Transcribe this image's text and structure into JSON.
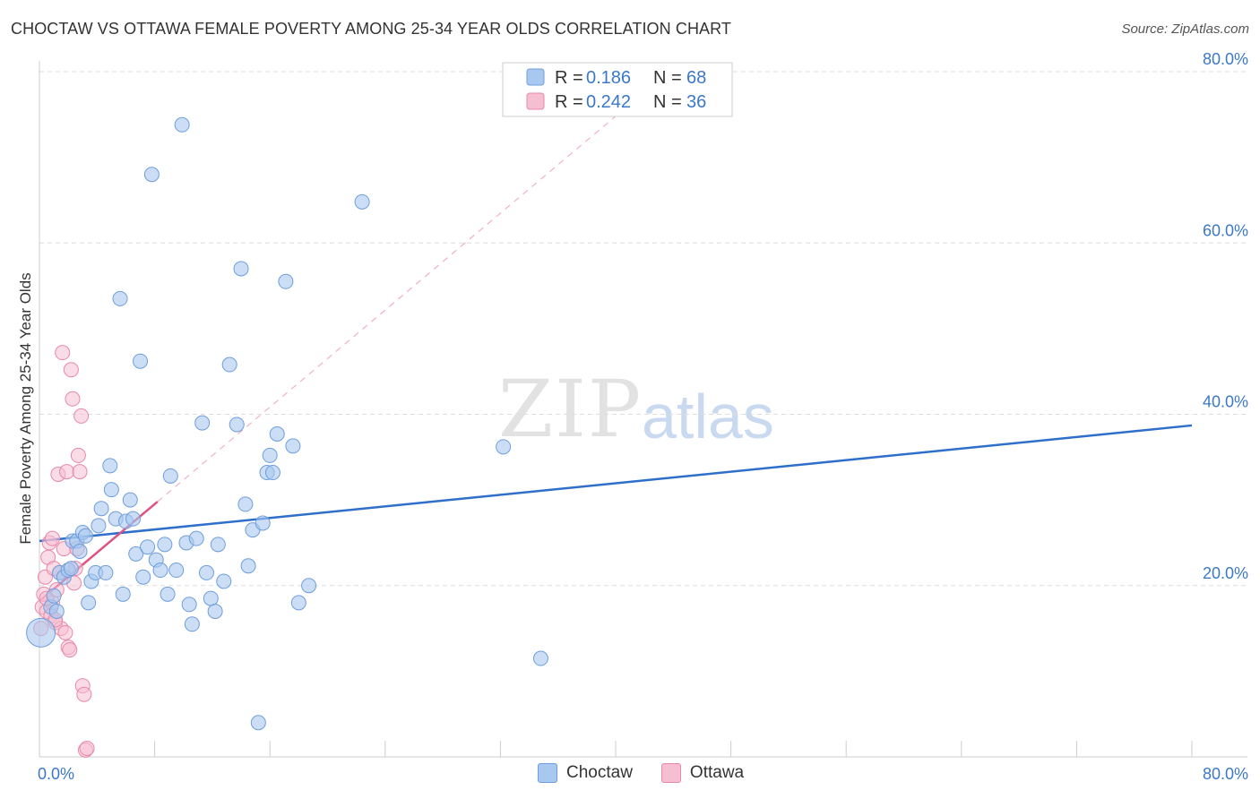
{
  "title": "CHOCTAW VS OTTAWA FEMALE POVERTY AMONG 25-34 YEAR OLDS CORRELATION CHART",
  "source": "Source: ZipAtlas.com",
  "watermark": {
    "zip": "ZIP",
    "atlas": "atlas"
  },
  "legend_top": {
    "rows": [
      {
        "r_label": "R =",
        "r_value": "0.186",
        "n_label": "N =",
        "n_value": "68"
      },
      {
        "r_label": "R =",
        "r_value": "0.242",
        "n_label": "N =",
        "n_value": "36"
      }
    ]
  },
  "legend_bottom": [
    {
      "label": "Choctaw"
    },
    {
      "label": "Ottawa"
    }
  ],
  "colors": {
    "choctaw_fill": "#a9c8ef",
    "choctaw_stroke": "#6e9edc",
    "choctaw_line": "#2f6fcc",
    "ottawa_fill": "#f6bfd1",
    "ottawa_stroke": "#e888a8",
    "ottawa_line": "#e05080",
    "tick_text": "#3b78c9",
    "grid": "#dddddd"
  },
  "chart_data": {
    "type": "scatter",
    "title": "CHOCTAW VS OTTAWA FEMALE POVERTY AMONG 25-34 YEAR OLDS CORRELATION CHART",
    "xlabel": "",
    "ylabel": "Female Poverty Among 25-34 Year Olds",
    "xlim": [
      0,
      80
    ],
    "ylim": [
      0,
      80
    ],
    "x_ticks": [
      "0.0%",
      "80.0%"
    ],
    "y_ticks": [
      "20.0%",
      "40.0%",
      "60.0%",
      "80.0%"
    ],
    "grid": true,
    "legend_placement": "top-center",
    "series": [
      {
        "name": "Choctaw",
        "points": [
          [
            0.1,
            14.5
          ],
          [
            0.8,
            17.5
          ],
          [
            1.0,
            18.8
          ],
          [
            1.2,
            17.0
          ],
          [
            1.4,
            21.5
          ],
          [
            1.7,
            21.0
          ],
          [
            2.0,
            21.8
          ],
          [
            2.3,
            25.2
          ],
          [
            2.6,
            25.2
          ],
          [
            2.8,
            24.0
          ],
          [
            3.0,
            26.2
          ],
          [
            3.2,
            25.8
          ],
          [
            3.4,
            18.0
          ],
          [
            3.6,
            20.5
          ],
          [
            3.9,
            21.5
          ],
          [
            4.1,
            27.0
          ],
          [
            4.3,
            29.0
          ],
          [
            4.6,
            21.5
          ],
          [
            4.9,
            34.0
          ],
          [
            5.0,
            31.2
          ],
          [
            5.3,
            27.8
          ],
          [
            5.6,
            53.5
          ],
          [
            5.8,
            19.0
          ],
          [
            6.0,
            27.5
          ],
          [
            6.3,
            30.0
          ],
          [
            6.5,
            27.8
          ],
          [
            6.7,
            23.7
          ],
          [
            7.0,
            46.2
          ],
          [
            7.2,
            21.0
          ],
          [
            7.5,
            24.5
          ],
          [
            7.8,
            68.0
          ],
          [
            8.1,
            23.0
          ],
          [
            8.4,
            21.8
          ],
          [
            8.7,
            24.8
          ],
          [
            8.9,
            19.0
          ],
          [
            9.1,
            32.8
          ],
          [
            9.5,
            21.8
          ],
          [
            9.9,
            73.8
          ],
          [
            10.2,
            25.0
          ],
          [
            10.4,
            17.8
          ],
          [
            10.6,
            15.5
          ],
          [
            10.9,
            25.5
          ],
          [
            11.3,
            39.0
          ],
          [
            11.6,
            21.5
          ],
          [
            11.9,
            18.5
          ],
          [
            12.2,
            17.0
          ],
          [
            12.4,
            24.8
          ],
          [
            12.8,
            20.5
          ],
          [
            13.2,
            45.8
          ],
          [
            13.7,
            38.8
          ],
          [
            14.0,
            57.0
          ],
          [
            14.3,
            29.5
          ],
          [
            14.5,
            22.3
          ],
          [
            14.8,
            26.5
          ],
          [
            15.2,
            4.0
          ],
          [
            15.5,
            27.3
          ],
          [
            15.8,
            33.2
          ],
          [
            16.0,
            35.2
          ],
          [
            16.2,
            33.2
          ],
          [
            16.5,
            37.7
          ],
          [
            17.1,
            55.5
          ],
          [
            17.6,
            36.3
          ],
          [
            18.0,
            18.0
          ],
          [
            18.7,
            20.0
          ],
          [
            22.4,
            64.8
          ],
          [
            32.2,
            36.2
          ],
          [
            34.8,
            11.5
          ],
          [
            2.2,
            22.0
          ]
        ]
      },
      {
        "name": "Ottawa",
        "points": [
          [
            0.1,
            15.0
          ],
          [
            0.2,
            17.5
          ],
          [
            0.3,
            19.0
          ],
          [
            0.4,
            21.0
          ],
          [
            0.5,
            17.0
          ],
          [
            0.6,
            23.3
          ],
          [
            0.7,
            25.0
          ],
          [
            0.8,
            16.5
          ],
          [
            0.9,
            18.0
          ],
          [
            1.0,
            22.0
          ],
          [
            1.1,
            15.7
          ],
          [
            1.2,
            19.5
          ],
          [
            1.3,
            33.0
          ],
          [
            1.4,
            21.5
          ],
          [
            1.5,
            15.0
          ],
          [
            1.6,
            47.2
          ],
          [
            1.7,
            24.3
          ],
          [
            1.8,
            14.5
          ],
          [
            1.9,
            33.3
          ],
          [
            2.0,
            12.8
          ],
          [
            2.1,
            12.5
          ],
          [
            2.2,
            45.2
          ],
          [
            2.3,
            41.8
          ],
          [
            2.4,
            20.3
          ],
          [
            2.5,
            22.0
          ],
          [
            2.6,
            24.3
          ],
          [
            2.7,
            35.2
          ],
          [
            2.8,
            33.3
          ],
          [
            2.9,
            39.8
          ],
          [
            3.0,
            8.3
          ],
          [
            3.1,
            7.3
          ],
          [
            3.2,
            0.8
          ],
          [
            3.3,
            1.0
          ],
          [
            0.9,
            25.5
          ],
          [
            1.1,
            16.0
          ],
          [
            0.5,
            18.5
          ]
        ]
      }
    ],
    "trend_lines": [
      {
        "series": "Choctaw",
        "x": [
          0,
          80
        ],
        "y": [
          25.2,
          38.7
        ]
      },
      {
        "series": "Ottawa",
        "x": [
          0,
          8.2
        ],
        "y": [
          18.2,
          29.8
        ],
        "extended_x": [
          8.2,
          40
        ],
        "extended_y": [
          29.8,
          74.8
        ]
      }
    ]
  }
}
